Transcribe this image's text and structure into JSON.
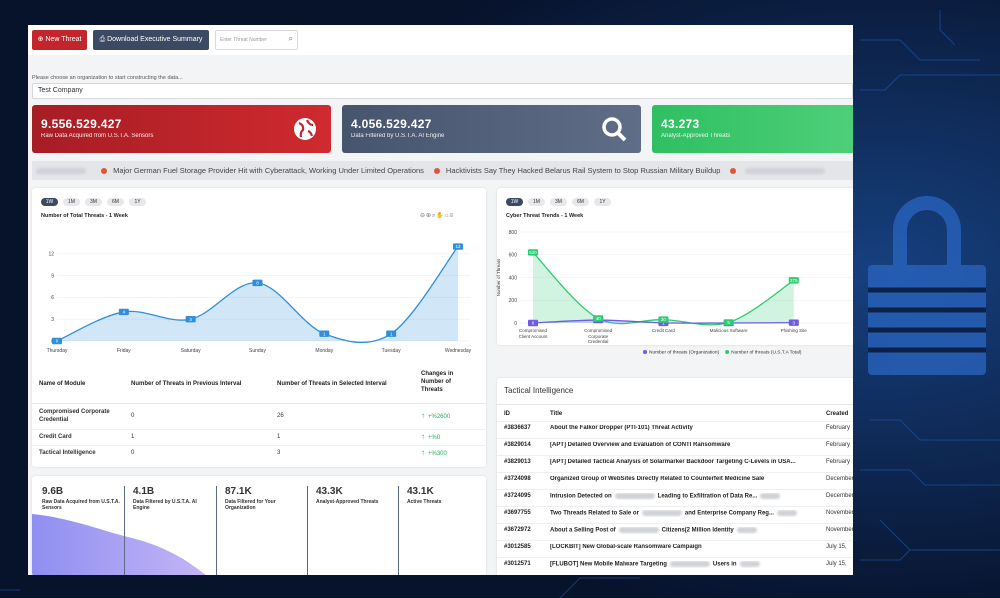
{
  "toolbar": {
    "new_threat": "New Threat",
    "download": "Download Executive Summary",
    "search_placeholder": "Enter Threat Number"
  },
  "organization": {
    "prompt": "Please choose an organization to start constructing the data...",
    "selected": "Test Company"
  },
  "stat_cards": [
    {
      "value": "9.556.529.427",
      "label": "Raw Data Acquired from U.S.T.A. Sensors"
    },
    {
      "value": "4.056.529.427",
      "label": "Data Filtered by U.S.T.A. AI Engine"
    },
    {
      "value": "43.273",
      "label": "Analyst-Approved Threats"
    }
  ],
  "ticker": [
    "Major German Fuel Storage Provider Hit with Cyberattack, Working Under Limited Operations",
    "Hacktivists Say They Hacked Belarus Rail System to Stop Russian Military Buildup"
  ],
  "weekly_chart": {
    "type": "line",
    "ranges": [
      "1W",
      "1M",
      "3M",
      "6M",
      "1Y"
    ],
    "title": "Number of Total Threats - 1 Week",
    "categories": [
      "Thursday",
      "Friday",
      "Saturday",
      "Sunday",
      "Monday",
      "Tuesday",
      "Wednesday"
    ],
    "values": [
      0,
      4,
      3,
      8,
      1,
      1,
      13
    ],
    "color": "#2f8fdc",
    "ylim": [
      0,
      15
    ],
    "yticks": [
      0,
      3,
      6,
      9,
      12
    ]
  },
  "module_table": {
    "headers": [
      "Name of Module",
      "Number of Threats in Previous Interval",
      "Number of Threats in Selected Interval",
      "Changes in Number of Threats"
    ],
    "rows": [
      [
        "Compromised Corporate Credential",
        "0",
        "26",
        "+%2600"
      ],
      [
        "Credit Card",
        "1",
        "1",
        "+%0"
      ],
      [
        "Tactical Intelligence",
        "0",
        "3",
        "+%300"
      ]
    ]
  },
  "trend_chart": {
    "type": "line",
    "ranges": [
      "1W",
      "1M",
      "3M",
      "6M",
      "1Y"
    ],
    "title": "Cyber Threat Trends - 1 Week",
    "ylabel": "Number of Threats",
    "categories": [
      "Compromised Client Account",
      "Compromised Corporate Credential",
      "Credit Card",
      "Malicious Software",
      "Phishing Site"
    ],
    "series": [
      {
        "name": "Number of threats (Organization)",
        "color": "#6c5ce7",
        "values": [
          0,
          26,
          1,
          0,
          3
        ]
      },
      {
        "name": "Number of threats (U.S.T.A Total)",
        "color": "#2ecc71",
        "values": [
          620,
          40,
          30,
          5,
          375
        ]
      }
    ],
    "ylim": [
      0,
      800
    ],
    "yticks": [
      0,
      200,
      400,
      600,
      800
    ]
  },
  "tactical": {
    "title": "Tactical Intelligence",
    "headers": [
      "ID",
      "Title",
      "Created"
    ],
    "rows": [
      [
        "#3836637",
        [
          "About the Falkor Dropper (PTI-101) Threat Activity"
        ],
        "February"
      ],
      [
        "#3829014",
        [
          "[APT] Detailed Overview and Evaluation of CONTI Ransomware"
        ],
        "February"
      ],
      [
        "#3829013",
        [
          "[APT] Detailed Tactical Analysis of Solarmarker Backdoor Targeting C-Levels in USA..."
        ],
        "February"
      ],
      [
        "#3724098",
        [
          "Organized Group of WebSites Directly Related to Counterfeit Medicine Sale"
        ],
        "December"
      ],
      [
        "#3724095",
        [
          "Intrusion Detected on",
          "Leading to Exfiltration of Data Re..."
        ],
        "December"
      ],
      [
        "#3697755",
        [
          "Two Threads Related to Sale or",
          "and Enterprise Company Reg..."
        ],
        "November"
      ],
      [
        "#3672972",
        [
          "About a Selling Post of",
          "Citizens(2 Million Identity"
        ],
        "November"
      ],
      [
        "#3012585",
        [
          "[LOCKBIT] New Global-scale Ransomware Campaign"
        ],
        "July 15,"
      ],
      [
        "#3012571",
        [
          "[FLUBOT] New Mobile Malware Targeting",
          "Users in"
        ],
        "July 15,"
      ]
    ]
  },
  "summary": [
    {
      "value": "9.6B",
      "label": "Raw Data Acquired from U.S.T.A. Sensors"
    },
    {
      "value": "4.1B",
      "label": "Data Filtered by U.S.T.A. AI Engine"
    },
    {
      "value": "87.1K",
      "label": "Data Filtered for Your Organization"
    },
    {
      "value": "43.3K",
      "label": "Analyst-Approved Threats"
    },
    {
      "value": "43.1K",
      "label": "Active Threats"
    }
  ]
}
